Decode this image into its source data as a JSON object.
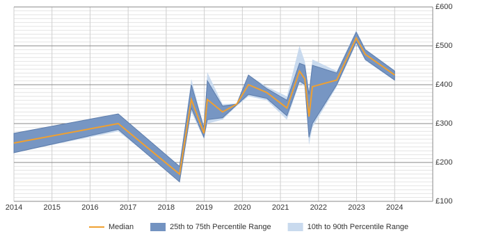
{
  "chart_data": {
    "type": "line_band",
    "x": [
      2014.0,
      2016.74,
      2018.35,
      2018.66,
      2018.99,
      2019.08,
      2019.48,
      2019.85,
      2020.16,
      2020.64,
      2021.17,
      2021.5,
      2021.64,
      2021.75,
      2021.84,
      2022.48,
      2022.99,
      2023.23,
      2024.0
    ],
    "series": [
      {
        "name": "Median",
        "color": "#f0a030",
        "values": [
          250,
          300,
          170,
          362,
          275,
          362,
          330,
          350,
          400,
          380,
          340,
          435,
          415,
          318,
          395,
          412,
          520,
          478,
          425
        ]
      },
      {
        "name": "25th to 75th Percentile Range",
        "color": "#7393c1",
        "lower": [
          225,
          285,
          150,
          340,
          265,
          310,
          315,
          348,
          375,
          365,
          320,
          410,
          400,
          265,
          300,
          400,
          510,
          465,
          412
        ],
        "upper": [
          275,
          325,
          190,
          400,
          290,
          410,
          345,
          350,
          425,
          390,
          360,
          455,
          450,
          375,
          450,
          430,
          535,
          490,
          435
        ]
      },
      {
        "name": "10th to 90th Percentile Range",
        "color": "#c9daee",
        "lower": [
          225,
          280,
          155,
          330,
          260,
          300,
          310,
          345,
          370,
          360,
          310,
          405,
          395,
          245,
          290,
          395,
          505,
          462,
          410
        ],
        "upper": [
          275,
          325,
          190,
          415,
          290,
          432,
          350,
          352,
          425,
          395,
          370,
          500,
          460,
          380,
          465,
          435,
          540,
          492,
          437
        ]
      }
    ],
    "xlim": [
      2014,
      2025
    ],
    "xticks": [
      2014,
      2015,
      2016,
      2017,
      2018,
      2019,
      2020,
      2021,
      2022,
      2023,
      2024
    ],
    "ylim": [
      100,
      600
    ],
    "yticks": [
      {
        "value": 100,
        "label": "£100"
      },
      {
        "value": 200,
        "label": "£200"
      },
      {
        "value": 300,
        "label": "£300"
      },
      {
        "value": 400,
        "label": "£400"
      },
      {
        "value": 500,
        "label": "£500"
      },
      {
        "value": 600,
        "label": "£600"
      }
    ],
    "yminorticks": [
      110,
      120,
      130,
      140,
      150,
      160,
      170,
      180,
      190,
      210,
      220,
      230,
      240,
      250,
      260,
      270,
      280,
      290,
      310,
      320,
      330,
      340,
      350,
      360,
      370,
      380,
      390,
      410,
      420,
      430,
      440,
      450,
      460,
      470,
      480,
      490,
      510,
      520,
      530,
      540,
      550,
      560,
      570,
      580,
      590
    ],
    "grid": true,
    "legend": "bottom"
  }
}
